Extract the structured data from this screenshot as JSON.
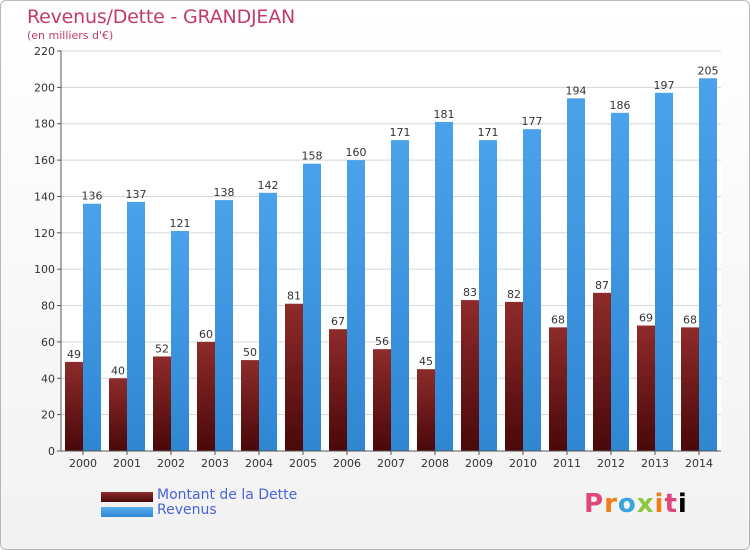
{
  "chart_data": {
    "type": "bar",
    "title": "Revenus/Dette - GRANDJEAN",
    "subtitle": "(en milliers d'€)",
    "categories": [
      "2000",
      "2001",
      "2002",
      "2003",
      "2004",
      "2005",
      "2006",
      "2007",
      "2008",
      "2009",
      "2010",
      "2011",
      "2012",
      "2013",
      "2014"
    ],
    "series": [
      {
        "name": "Montant de la Dette",
        "color": "#7a1a1a",
        "values": [
          49,
          40,
          52,
          60,
          50,
          81,
          67,
          56,
          45,
          83,
          82,
          68,
          87,
          69,
          68
        ]
      },
      {
        "name": "Revenus",
        "color": "#3f95df",
        "values": [
          136,
          137,
          121,
          138,
          142,
          158,
          160,
          171,
          181,
          171,
          177,
          194,
          186,
          197,
          205
        ]
      }
    ],
    "ylim": [
      0,
      220
    ],
    "yticks": [
      0,
      20,
      40,
      60,
      80,
      100,
      120,
      140,
      160,
      180,
      200,
      220
    ],
    "grid": true,
    "legend_position": "bottom-left"
  },
  "logo_text": "Proxiti"
}
